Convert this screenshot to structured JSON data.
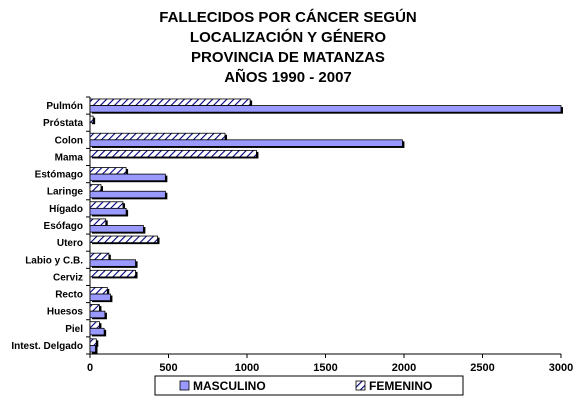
{
  "chart_data": {
    "type": "bar",
    "orientation": "horizontal",
    "title": [
      "FALLECIDOS POR CÁNCER SEGÚN",
      "LOCALIZACIÓN Y GÉNERO",
      "PROVINCIA DE MATANZAS",
      "AÑOS 1990 - 2007"
    ],
    "categories": [
      "Pulmón",
      "Próstata",
      "Colon",
      "Mama",
      "Estómago",
      "Laringe",
      "Hígado",
      "Esófago",
      "Utero",
      "Labio y C.B.",
      "Cerviz",
      "Recto",
      "Huesos",
      "Piel",
      "Intest. Delgado"
    ],
    "series": [
      {
        "name": "MASCULINO",
        "values": [
          3000,
          0,
          1990,
          0,
          480,
          480,
          230,
          340,
          0,
          290,
          0,
          130,
          95,
          90,
          35
        ],
        "color": "#9999ff",
        "pattern": "solid"
      },
      {
        "name": "FEMENINO",
        "values": [
          1020,
          20,
          860,
          1060,
          230,
          70,
          210,
          100,
          430,
          120,
          290,
          110,
          60,
          60,
          40
        ],
        "color": "#ffffff",
        "pattern": "diagonal-hatch"
      }
    ],
    "xlim": [
      0,
      3000
    ],
    "xticks": [
      0,
      500,
      1000,
      1500,
      2000,
      2500,
      3000
    ],
    "legend_position": "bottom"
  }
}
